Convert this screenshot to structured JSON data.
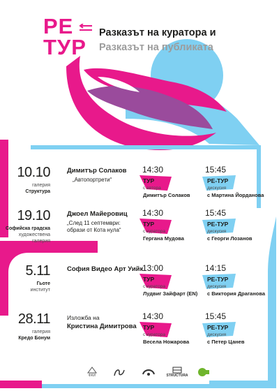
{
  "colors": {
    "pink": "#e8198b",
    "blue": "#7fd0f2",
    "purple": "#9a4b9c",
    "grey": "#9c9c9c"
  },
  "logo": {
    "line1": "РЕ",
    "line2": "ТУР"
  },
  "title": {
    "line1": "Разказът на куратора и",
    "line2": "Разказът на публиката"
  },
  "events": [
    {
      "date": "10.10",
      "venue_top": "галерия",
      "venue_main": "Структура",
      "event_title": "Димитър Солаков",
      "event_sub": "„Автопортрети“",
      "tour": {
        "time": "14:30",
        "label": "ТУР",
        "role": "с автора",
        "name": "Димитър Солаков"
      },
      "retour": {
        "time": "15:45",
        "label": "РЕ-ТУР",
        "role": "дискусия",
        "name": "с Мартина Йорданова"
      }
    },
    {
      "date": "19.10",
      "venue_top": "",
      "venue_main": "Софийска градска",
      "venue_extra": "художествена галерия",
      "event_title": "Джоел Майеровиц",
      "event_sub": "„След 11 септември: образи от Кота нула“",
      "tour": {
        "time": "14:30",
        "label": "ТУР",
        "role": "с куратора",
        "name": "Гергана Мудова"
      },
      "retour": {
        "time": "15:45",
        "label": "РЕ-ТУР",
        "role": "дискусия",
        "name": "с Георги Лозанов"
      }
    },
    {
      "date": "5.11",
      "venue_top": "",
      "venue_main": "Гьоте",
      "venue_extra": "институт",
      "event_title": "София Видео Арт Уийк",
      "event_sub": "",
      "tour": {
        "time": "13:00",
        "label": "ТУР",
        "role": "с куратора",
        "name": "Лудвиг Зайфарт (EN)"
      },
      "retour": {
        "time": "14:15",
        "label": "РЕ-ТУР",
        "role": "дискусия",
        "name": "с Виктория Драганова"
      }
    },
    {
      "date": "28.11",
      "venue_top": "галерия",
      "venue_main": "Кредо Бонум",
      "event_title": "Изложба на",
      "event_title2": "Кристина Димитрова",
      "event_sub": "",
      "tour": {
        "time": "14:30",
        "label": "ТУР",
        "role": "с куратора",
        "name": "Весела Ножарова"
      },
      "retour": {
        "time": "15:45",
        "label": "РЕ-ТУР",
        "role": "дискусия",
        "name": "с Петер Цанев"
      }
    }
  ],
  "sponsors": [
    {
      "icon": "fund-logo-icon",
      "label": "ФКИ"
    },
    {
      "icon": "arts-logo-icon",
      "label": ""
    },
    {
      "icon": "camera-logo-icon",
      "label": ""
    },
    {
      "icon": "structura-logo-icon",
      "label": "STRUCTURA"
    },
    {
      "icon": "goethe-logo-icon",
      "label": ""
    }
  ]
}
